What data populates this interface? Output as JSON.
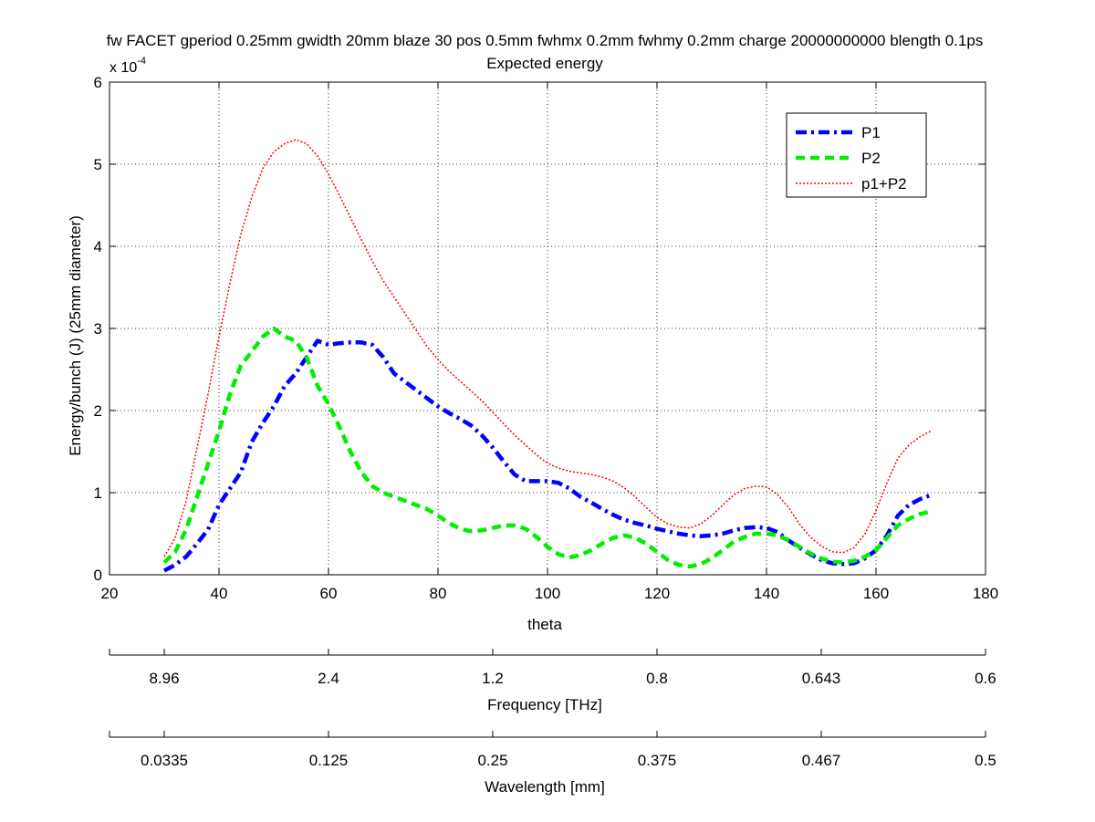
{
  "chart_data": {
    "type": "line",
    "title": "fw FACET gperiod 0.25mm gwidth 20mm blaze 30 pos 0.5mm fwhmx 0.2mm fwhmy 0.2mm charge 20000000000 blength 0.1ps",
    "subtitle": "Expected energy",
    "xlabel": "theta",
    "ylabel": "Energy/bunch (J) (25mm diameter)",
    "y_exponent_label": "x 10",
    "y_exponent_power": "-4",
    "xlim": [
      20,
      180
    ],
    "ylim": [
      0,
      6
    ],
    "x_ticks": [
      "20",
      "40",
      "60",
      "80",
      "100",
      "120",
      "140",
      "160",
      "180"
    ],
    "y_ticks": [
      "0",
      "1",
      "2",
      "3",
      "4",
      "5",
      "6"
    ],
    "grid": true,
    "legend_position": "top-right",
    "series": [
      {
        "name": "P1",
        "color": "#0000ff",
        "style": "dash-dot",
        "x": [
          30,
          32,
          34,
          36,
          38,
          40,
          42,
          44,
          46,
          48,
          50,
          52,
          54,
          56,
          58,
          60,
          62,
          64,
          66,
          68,
          70,
          72,
          74,
          76,
          78,
          80,
          82,
          84,
          86,
          88,
          90,
          92,
          94,
          96,
          98,
          100,
          102,
          104,
          106,
          108,
          110,
          112,
          114,
          116,
          118,
          120,
          122,
          124,
          126,
          128,
          130,
          132,
          134,
          136,
          138,
          140,
          142,
          144,
          146,
          148,
          150,
          152,
          154,
          156,
          158,
          160,
          162,
          164,
          166,
          168,
          170
        ],
        "y": [
          0.05,
          0.12,
          0.22,
          0.38,
          0.55,
          0.85,
          1.05,
          1.25,
          1.62,
          1.85,
          2.05,
          2.3,
          2.45,
          2.65,
          2.85,
          2.8,
          2.82,
          2.83,
          2.83,
          2.8,
          2.65,
          2.45,
          2.35,
          2.25,
          2.15,
          2.05,
          1.97,
          1.9,
          1.82,
          1.7,
          1.55,
          1.38,
          1.22,
          1.14,
          1.14,
          1.14,
          1.12,
          1.05,
          0.95,
          0.88,
          0.8,
          0.73,
          0.67,
          0.63,
          0.6,
          0.56,
          0.53,
          0.5,
          0.48,
          0.47,
          0.48,
          0.5,
          0.54,
          0.57,
          0.58,
          0.57,
          0.52,
          0.42,
          0.33,
          0.25,
          0.18,
          0.14,
          0.13,
          0.14,
          0.2,
          0.3,
          0.48,
          0.72,
          0.85,
          0.92,
          0.97
        ]
      },
      {
        "name": "P2",
        "color": "#00ee00",
        "style": "dashed",
        "x": [
          30,
          32,
          34,
          36,
          38,
          40,
          42,
          44,
          46,
          48,
          50,
          52,
          54,
          56,
          58,
          60,
          62,
          64,
          66,
          68,
          70,
          72,
          74,
          76,
          78,
          80,
          82,
          84,
          86,
          88,
          90,
          92,
          94,
          96,
          98,
          100,
          102,
          104,
          106,
          108,
          110,
          112,
          114,
          116,
          118,
          120,
          122,
          124,
          126,
          128,
          130,
          132,
          134,
          136,
          138,
          140,
          142,
          144,
          146,
          148,
          150,
          152,
          154,
          156,
          158,
          160,
          162,
          164,
          166,
          168,
          170
        ],
        "y": [
          0.15,
          0.28,
          0.55,
          0.95,
          1.35,
          1.75,
          2.2,
          2.55,
          2.72,
          2.9,
          3.0,
          2.9,
          2.85,
          2.65,
          2.3,
          2.08,
          1.8,
          1.5,
          1.25,
          1.08,
          1.0,
          0.95,
          0.9,
          0.85,
          0.8,
          0.72,
          0.63,
          0.56,
          0.53,
          0.54,
          0.57,
          0.6,
          0.6,
          0.56,
          0.46,
          0.34,
          0.25,
          0.21,
          0.24,
          0.3,
          0.38,
          0.45,
          0.48,
          0.45,
          0.38,
          0.28,
          0.18,
          0.12,
          0.1,
          0.13,
          0.2,
          0.3,
          0.4,
          0.46,
          0.5,
          0.5,
          0.48,
          0.42,
          0.34,
          0.26,
          0.2,
          0.16,
          0.15,
          0.17,
          0.22,
          0.3,
          0.45,
          0.6,
          0.68,
          0.74,
          0.77
        ]
      },
      {
        "name": "p1+P2",
        "color": "#ff0000",
        "style": "dotted",
        "x": [
          30,
          32,
          34,
          36,
          38,
          40,
          42,
          44,
          46,
          48,
          50,
          52,
          54,
          56,
          58,
          60,
          62,
          64,
          66,
          68,
          70,
          72,
          74,
          76,
          78,
          80,
          82,
          84,
          86,
          88,
          90,
          92,
          94,
          96,
          98,
          100,
          102,
          104,
          106,
          108,
          110,
          112,
          114,
          116,
          118,
          120,
          122,
          124,
          126,
          128,
          130,
          132,
          134,
          136,
          138,
          140,
          142,
          144,
          146,
          148,
          150,
          152,
          154,
          156,
          158,
          160,
          162,
          164,
          166,
          168,
          170
        ],
        "y": [
          0.22,
          0.45,
          0.9,
          1.55,
          2.2,
          2.9,
          3.55,
          4.15,
          4.6,
          4.95,
          5.15,
          5.25,
          5.3,
          5.25,
          5.1,
          4.88,
          4.62,
          4.35,
          4.08,
          3.82,
          3.58,
          3.38,
          3.18,
          2.98,
          2.78,
          2.62,
          2.48,
          2.36,
          2.24,
          2.12,
          1.98,
          1.84,
          1.7,
          1.58,
          1.46,
          1.36,
          1.3,
          1.26,
          1.24,
          1.22,
          1.19,
          1.14,
          1.06,
          0.95,
          0.82,
          0.7,
          0.62,
          0.58,
          0.57,
          0.62,
          0.72,
          0.85,
          0.97,
          1.05,
          1.08,
          1.07,
          0.98,
          0.82,
          0.62,
          0.46,
          0.35,
          0.28,
          0.27,
          0.33,
          0.5,
          0.78,
          1.12,
          1.42,
          1.58,
          1.68,
          1.75
        ]
      }
    ],
    "secondary_axes": [
      {
        "label": "Frequency [THz]",
        "ticks": [
          "8.96",
          "2.4",
          "1.2",
          "0.8",
          "0.643",
          "0.6"
        ]
      },
      {
        "label": "Wavelength [mm]",
        "ticks": [
          "0.0335",
          "0.125",
          "0.25",
          "0.375",
          "0.467",
          "0.5"
        ]
      }
    ]
  }
}
